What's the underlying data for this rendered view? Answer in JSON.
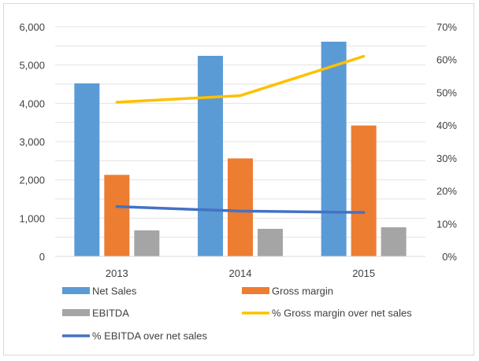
{
  "chart_data": {
    "type": "bar",
    "title": "",
    "categories": [
      "2013",
      "2014",
      "2015"
    ],
    "y_left": {
      "min": 0,
      "max": 6000,
      "step": 1000,
      "tick_labels": [
        "0",
        "1,000",
        "2,000",
        "3,000",
        "4,000",
        "5,000",
        "6,000"
      ]
    },
    "y_right": {
      "min": 0,
      "max": 0.7,
      "step": 0.1,
      "tick_labels": [
        "0%",
        "10%",
        "20%",
        "30%",
        "40%",
        "50%",
        "60%",
        "70%"
      ]
    },
    "grid": true,
    "legend_position": "bottom",
    "bar_series": [
      {
        "name": "Net Sales",
        "color": "#5b9bd5",
        "values": [
          4520,
          5240,
          5610
        ]
      },
      {
        "name": "Gross margin",
        "color": "#ed7d31",
        "values": [
          2130,
          2560,
          3420
        ]
      },
      {
        "name": "EBITDA",
        "color": "#a5a5a5",
        "values": [
          680,
          720,
          760
        ]
      }
    ],
    "line_series": [
      {
        "name": "% Gross margin over net sales",
        "color": "#ffc000",
        "axis": "right",
        "values": [
          0.47,
          0.49,
          0.61
        ]
      },
      {
        "name": "% EBITDA over net sales",
        "color": "#4472c4",
        "axis": "right",
        "values": [
          0.152,
          0.138,
          0.134
        ]
      }
    ]
  }
}
